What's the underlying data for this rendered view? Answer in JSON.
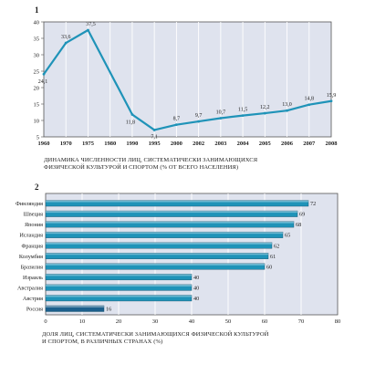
{
  "chart_data": [
    {
      "type": "line",
      "figure_number": "1",
      "title": "ДИНАМИКА ЧИСЛЕННОСТИ ЛИЦ, СИСТЕМАТИЧЕСКИ ЗАНИМАЮЩИХСЯ ФИЗИЧЕСКОЙ КУЛЬТУРОЙ И СПОРТОМ (% ОТ ВСЕГО НАСЕЛЕНИЯ)",
      "x": [
        "1960",
        "1970",
        "1975",
        "1990",
        "1995",
        "2000",
        "2002",
        "2003",
        "2004",
        "2005",
        "2006",
        "2007",
        "2008"
      ],
      "x_ticks": [
        "1960",
        "1970",
        "1975",
        "1980",
        "1990",
        "1995",
        "2000",
        "2002",
        "2003",
        "2004",
        "2005",
        "2006",
        "2007",
        "2008"
      ],
      "values": [
        24.1,
        33.6,
        37.5,
        11.8,
        7.1,
        8.7,
        9.7,
        10.7,
        11.5,
        12.2,
        13.0,
        14.8,
        15.9
      ],
      "labels": [
        "24,1",
        "33,6",
        "37,5",
        "11,8",
        "7,1",
        "8,7",
        "9,7",
        "10,7",
        "11,5",
        "12,2",
        "13,0",
        "14,8",
        "15,9"
      ],
      "yticks": [
        "5",
        "10",
        "15",
        "20",
        "25",
        "30",
        "35",
        "40"
      ],
      "ylim": [
        5,
        40
      ],
      "grid": "vertical",
      "line_color": "#1f93b8",
      "plot_background": "#dfe3ee"
    },
    {
      "type": "bar",
      "orientation": "horizontal",
      "figure_number": "2",
      "title": "ДОЛЯ ЛИЦ, СИСТЕМАТИЧЕСКИ ЗАНИМАЮЩИХСЯ ФИЗИЧЕСКОЙ КУЛЬТУРОЙ И СПОРТОМ, В РАЗЛИЧНЫХ СТРАНАХ (%)",
      "categories": [
        "Финляндия",
        "Швеция",
        "Япония",
        "Исландия",
        "Франция",
        "Колумбия",
        "Бразилия",
        "Израиль",
        "Австралия",
        "Австрия",
        "Россия"
      ],
      "values": [
        72,
        69,
        68,
        65,
        62,
        61,
        60,
        40,
        40,
        40,
        16
      ],
      "xticks": [
        "0",
        "10",
        "20",
        "30",
        "40",
        "50",
        "60",
        "70",
        "80"
      ],
      "xlim": [
        0,
        80
      ],
      "grid": "vertical",
      "bar_color": "#1f93b8",
      "highlight_color": "#1c5f8c",
      "plot_background": "#dfe3ee"
    }
  ]
}
